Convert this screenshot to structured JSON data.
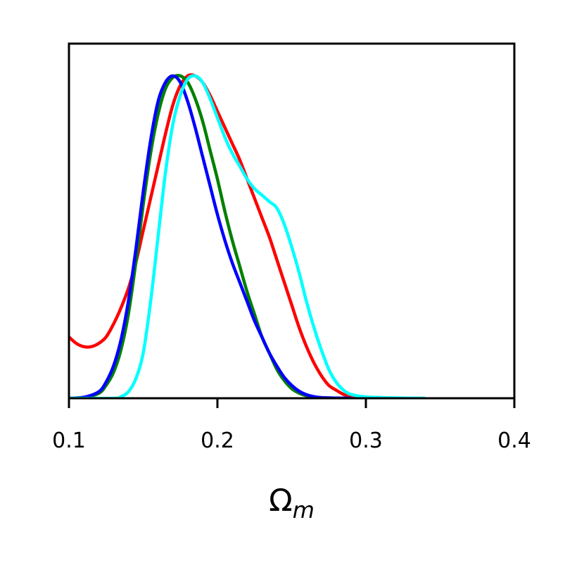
{
  "chart_data": {
    "type": "line",
    "title": "",
    "xlabel": "Ω",
    "xlabel_subscript": "m",
    "ylabel": "",
    "xlim": [
      0.1,
      0.4
    ],
    "ylim": [
      0,
      1.1
    ],
    "xticks": [
      0.1,
      0.2,
      0.3,
      0.4
    ],
    "xtick_labels": [
      "0.1",
      "0.2",
      "0.3",
      "0.4"
    ],
    "yticks_shown": false,
    "grid": false,
    "legend": false,
    "series": [
      {
        "color": "#ff0000",
        "x": [
          0.1,
          0.105,
          0.11,
          0.115,
          0.12,
          0.125,
          0.13,
          0.135,
          0.14,
          0.145,
          0.15,
          0.155,
          0.16,
          0.165,
          0.17,
          0.175,
          0.18,
          0.185,
          0.19,
          0.195,
          0.2,
          0.205,
          0.21,
          0.215,
          0.22,
          0.225,
          0.23,
          0.235,
          0.24,
          0.245,
          0.25,
          0.255,
          0.26,
          0.265,
          0.27,
          0.275,
          0.28,
          0.285,
          0.29,
          0.295,
          0.3
        ],
        "y": [
          0.19,
          0.17,
          0.16,
          0.16,
          0.17,
          0.19,
          0.23,
          0.28,
          0.34,
          0.42,
          0.52,
          0.62,
          0.72,
          0.82,
          0.91,
          0.97,
          1.0,
          1.0,
          0.98,
          0.94,
          0.89,
          0.84,
          0.79,
          0.74,
          0.68,
          0.62,
          0.56,
          0.5,
          0.43,
          0.36,
          0.29,
          0.22,
          0.16,
          0.11,
          0.07,
          0.04,
          0.025,
          0.012,
          0.005,
          0.002,
          0.0
        ]
      },
      {
        "color": "#008000",
        "x": [
          0.1,
          0.11,
          0.12,
          0.125,
          0.13,
          0.135,
          0.14,
          0.145,
          0.15,
          0.155,
          0.16,
          0.165,
          0.17,
          0.175,
          0.18,
          0.185,
          0.19,
          0.195,
          0.2,
          0.205,
          0.21,
          0.215,
          0.22,
          0.225,
          0.23,
          0.235,
          0.24,
          0.245,
          0.25,
          0.255,
          0.26,
          0.265,
          0.27,
          0.28,
          0.29
        ],
        "y": [
          0.0,
          0.003,
          0.015,
          0.04,
          0.08,
          0.15,
          0.26,
          0.42,
          0.6,
          0.76,
          0.88,
          0.96,
          0.995,
          1.0,
          0.98,
          0.93,
          0.86,
          0.77,
          0.68,
          0.58,
          0.49,
          0.41,
          0.33,
          0.26,
          0.19,
          0.14,
          0.09,
          0.055,
          0.03,
          0.016,
          0.008,
          0.004,
          0.002,
          0.0005,
          0.0
        ]
      },
      {
        "color": "#0000ff",
        "x": [
          0.1,
          0.11,
          0.12,
          0.125,
          0.13,
          0.135,
          0.14,
          0.145,
          0.15,
          0.155,
          0.16,
          0.165,
          0.17,
          0.175,
          0.18,
          0.185,
          0.19,
          0.195,
          0.2,
          0.205,
          0.21,
          0.215,
          0.22,
          0.225,
          0.23,
          0.235,
          0.24,
          0.245,
          0.25,
          0.255,
          0.26,
          0.265,
          0.27,
          0.28,
          0.29
        ],
        "y": [
          0.0,
          0.003,
          0.02,
          0.05,
          0.1,
          0.18,
          0.3,
          0.46,
          0.64,
          0.8,
          0.92,
          0.98,
          1.0,
          0.98,
          0.92,
          0.84,
          0.75,
          0.66,
          0.57,
          0.49,
          0.42,
          0.36,
          0.3,
          0.24,
          0.19,
          0.14,
          0.1,
          0.065,
          0.04,
          0.022,
          0.011,
          0.005,
          0.002,
          0.0005,
          0.0
        ]
      },
      {
        "color": "#00ffff",
        "x": [
          0.1,
          0.13,
          0.135,
          0.14,
          0.145,
          0.15,
          0.155,
          0.16,
          0.165,
          0.17,
          0.175,
          0.18,
          0.185,
          0.19,
          0.195,
          0.2,
          0.205,
          0.21,
          0.215,
          0.22,
          0.225,
          0.23,
          0.235,
          0.24,
          0.245,
          0.25,
          0.255,
          0.26,
          0.265,
          0.27,
          0.275,
          0.28,
          0.285,
          0.29,
          0.3,
          0.32,
          0.34
        ],
        "y": [
          0.0,
          0.0,
          0.005,
          0.02,
          0.06,
          0.14,
          0.3,
          0.5,
          0.7,
          0.85,
          0.94,
          0.99,
          1.0,
          0.98,
          0.93,
          0.87,
          0.81,
          0.76,
          0.72,
          0.68,
          0.65,
          0.63,
          0.61,
          0.59,
          0.54,
          0.47,
          0.39,
          0.3,
          0.22,
          0.15,
          0.09,
          0.05,
          0.025,
          0.012,
          0.004,
          0.001,
          0.0
        ]
      }
    ]
  }
}
